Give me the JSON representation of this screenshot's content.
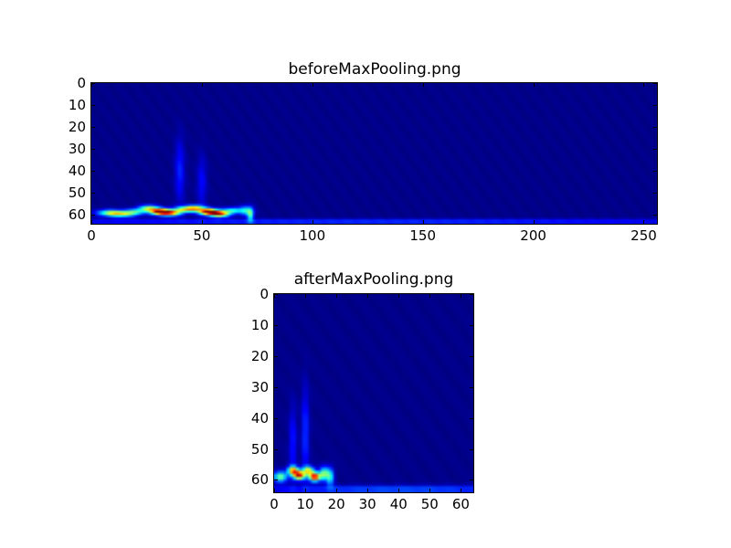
{
  "chart_data": [
    {
      "type": "heatmap",
      "title": "beforeMaxPooling.png",
      "colormap": "jet",
      "columns": 256,
      "rows": 64,
      "xlim": [
        0,
        256
      ],
      "ylim": [
        64,
        0
      ],
      "xticks": [
        0,
        50,
        100,
        150,
        200,
        250
      ],
      "yticks": [
        0,
        10,
        20,
        30,
        40,
        50,
        60
      ],
      "value_range": [
        0,
        1
      ],
      "blobs_x_y_sx_sy_amp": [
        [
          8,
          59,
          4,
          1,
          0.45
        ],
        [
          14,
          59.5,
          4,
          1,
          0.5
        ],
        [
          20,
          58.5,
          3,
          1,
          0.35
        ],
        [
          26,
          57,
          3,
          1,
          0.55
        ],
        [
          31,
          58.5,
          3,
          1,
          0.95
        ],
        [
          36,
          59,
          3,
          1,
          0.7
        ],
        [
          42,
          57.5,
          3,
          1,
          0.5
        ],
        [
          47,
          57,
          3,
          1,
          0.6
        ],
        [
          53,
          58.5,
          3,
          1,
          0.95
        ],
        [
          58,
          59.5,
          3,
          1,
          0.8
        ],
        [
          64,
          58,
          3,
          1,
          0.4
        ],
        [
          70,
          58,
          2,
          1.5,
          0.35
        ],
        [
          72,
          60,
          1,
          2,
          0.4
        ],
        [
          40,
          40,
          1.5,
          10,
          0.15
        ],
        [
          50,
          45,
          1.5,
          8,
          0.12
        ],
        [
          128,
          63,
          140,
          0.8,
          0.18
        ]
      ]
    },
    {
      "type": "heatmap",
      "title": "afterMaxPooling.png",
      "colormap": "jet",
      "columns": 64,
      "rows": 64,
      "xlim": [
        0,
        64
      ],
      "ylim": [
        64,
        0
      ],
      "xticks": [
        0,
        10,
        20,
        30,
        40,
        50,
        60
      ],
      "yticks": [
        0,
        10,
        20,
        30,
        40,
        50,
        60
      ],
      "value_range": [
        0,
        1
      ],
      "blobs_x_y_sx_sy_amp": [
        [
          2,
          59,
          1.5,
          1.2,
          0.5
        ],
        [
          6,
          57,
          1.2,
          1,
          0.7
        ],
        [
          8,
          58.5,
          1.2,
          1,
          0.9
        ],
        [
          11,
          57,
          1.2,
          1,
          0.6
        ],
        [
          13,
          59,
          1.2,
          1,
          0.95
        ],
        [
          16,
          58,
          1,
          1.5,
          0.5
        ],
        [
          18,
          59,
          0.8,
          2,
          0.4
        ],
        [
          6,
          48,
          0.8,
          8,
          0.15
        ],
        [
          10,
          45,
          0.8,
          10,
          0.18
        ],
        [
          40,
          63,
          35,
          0.8,
          0.22
        ]
      ]
    }
  ]
}
